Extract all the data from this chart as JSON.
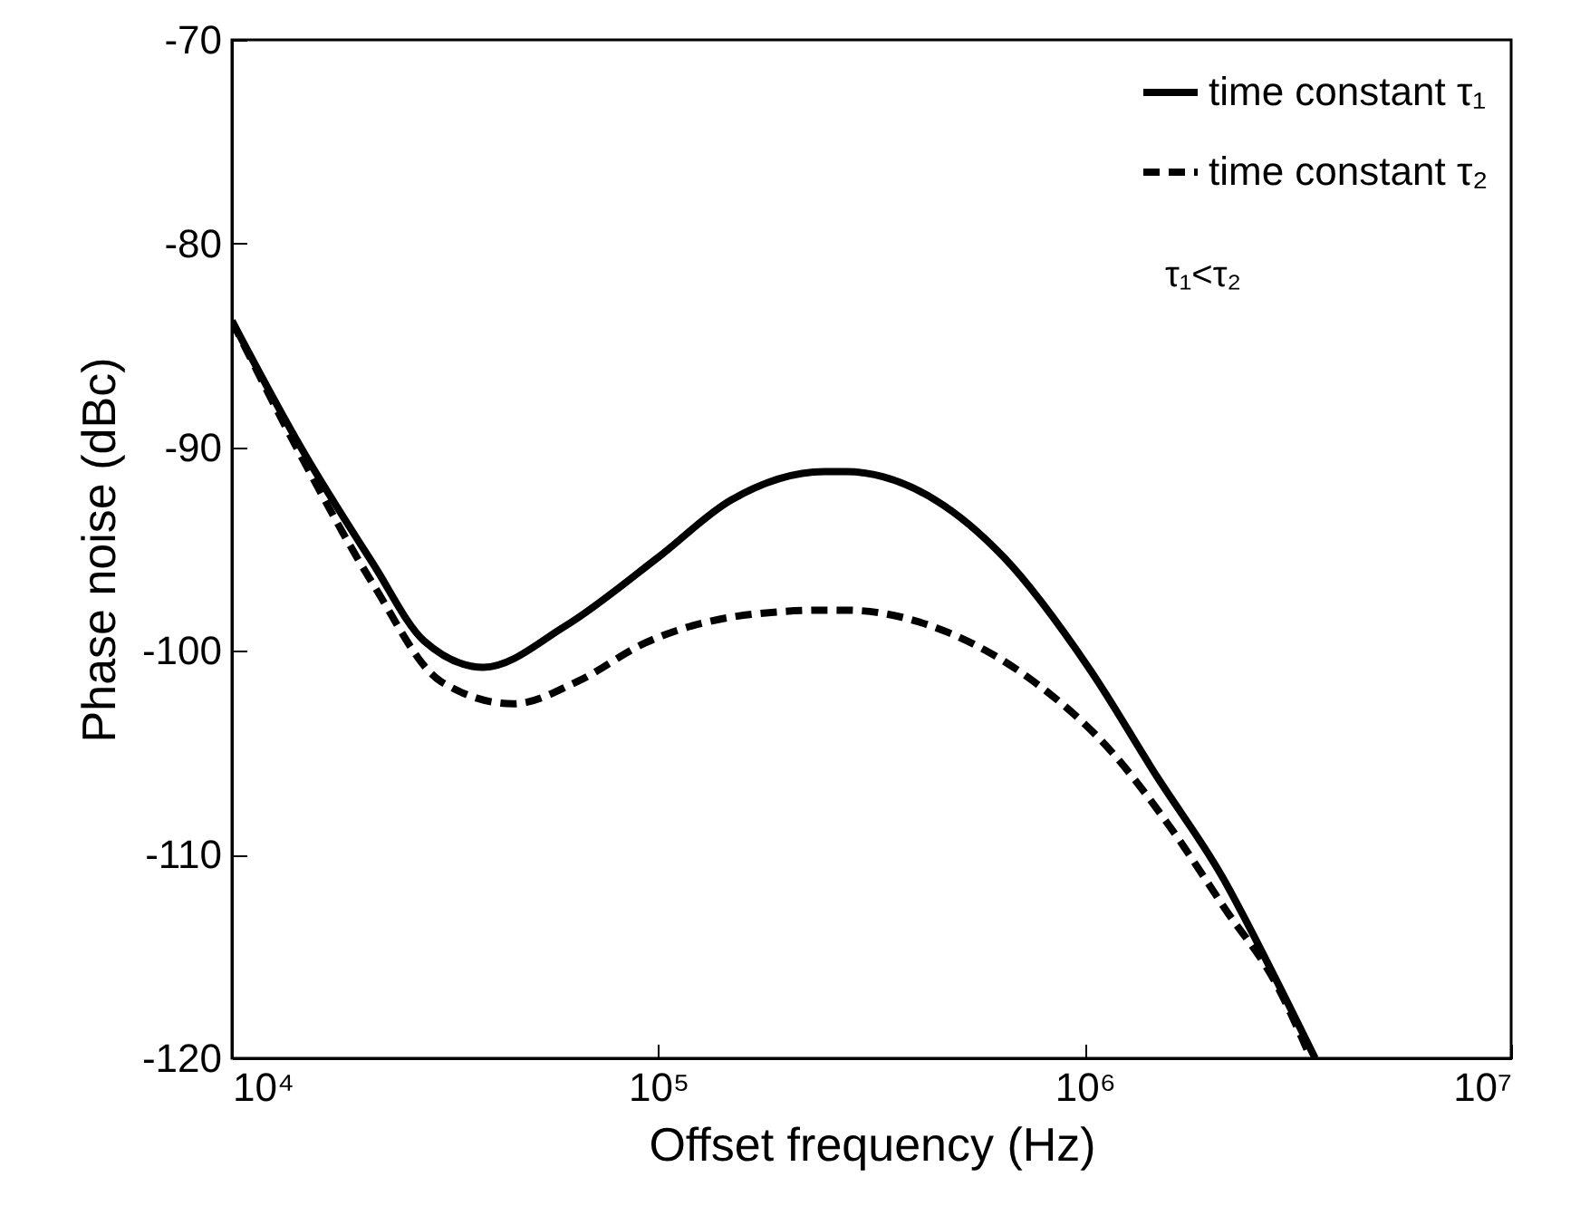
{
  "chart_data": {
    "type": "line",
    "xlabel": "Offset frequency (Hz)",
    "ylabel": "Phase noise (dBc)",
    "log": "x",
    "grid": false,
    "legend": "top right",
    "marker": "none",
    "xlim": [
      10000,
      10000000
    ],
    "xticks": [
      {
        "value": 10000,
        "label": "10⁴"
      },
      {
        "value": 100000,
        "label": "10⁵"
      },
      {
        "value": 1000000,
        "label": "10⁶"
      },
      {
        "value": 10000000,
        "label": "10⁷"
      }
    ],
    "ylim": [
      -120,
      -70
    ],
    "yticks": [
      -120,
      -110,
      -100,
      -90,
      -80,
      -70
    ],
    "annotations": [
      "τ₁<τ₂"
    ],
    "series": [
      {
        "name": "time constant τ₁",
        "color": "#000000",
        "line_style": "solid",
        "x": [
          10000,
          14500,
          21400,
          28200,
          38900,
          60300,
          100000,
          148000,
          245000,
          275000,
          447000,
          646000,
          1020000,
          1480000,
          2090000,
          2820000,
          3470000
        ],
        "values": [
          -83.8,
          -90.0,
          -95.7,
          -99.5,
          -100.8,
          -98.8,
          -95.4,
          -92.6,
          -91.2,
          -91.2,
          -92.6,
          -95.4,
          -100.8,
          -106.2,
          -111.0,
          -116.2,
          -120
        ]
      },
      {
        "name": "time constant τ₂",
        "color": "#000000",
        "line_style": "dashed",
        "x": [
          10000,
          14500,
          21400,
          30900,
          45700,
          64600,
          93300,
          166000,
          245000,
          275000,
          479000,
          759000,
          1150000,
          1580000,
          2140000,
          2820000,
          3390000
        ],
        "values": [
          -83.8,
          -90.4,
          -96.7,
          -101.5,
          -102.6,
          -101.5,
          -99.6,
          -98.2,
          -98.0,
          -98.0,
          -99.1,
          -101.5,
          -104.9,
          -108.6,
          -112.7,
          -116.4,
          -120
        ]
      }
    ]
  }
}
